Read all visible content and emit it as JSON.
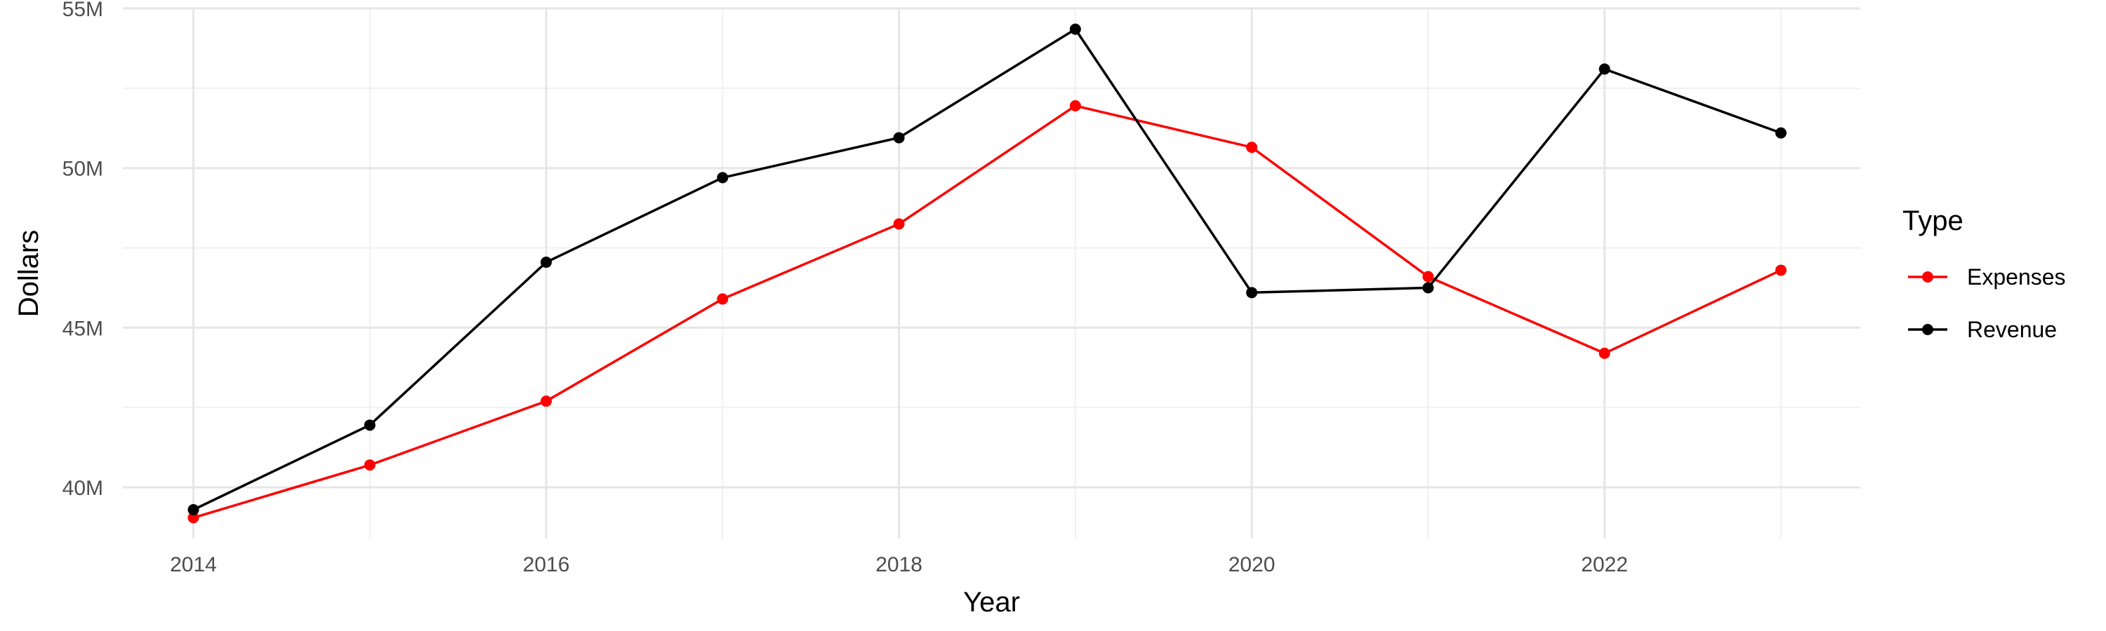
{
  "chart_data": {
    "type": "line",
    "title": "",
    "xlabel": "Year",
    "ylabel": "Dollars",
    "x": [
      2014,
      2015,
      2016,
      2017,
      2018,
      2019,
      2020,
      2021,
      2022,
      2023
    ],
    "xlim": [
      2013.6,
      2023.45
    ],
    "ylim": [
      38.4,
      55
    ],
    "x_ticks": [
      2014,
      2016,
      2018,
      2020,
      2022
    ],
    "y_ticks": [
      40,
      45,
      50,
      55
    ],
    "y_tick_labels": [
      "40M",
      "45M",
      "50M",
      "55M"
    ],
    "y_unit": "M",
    "grid": true,
    "legend": {
      "title": "Type",
      "position": "right"
    },
    "series": [
      {
        "name": "Expenses",
        "color": "#ff0000",
        "values": [
          39.05,
          40.7,
          42.7,
          45.9,
          48.25,
          51.95,
          50.65,
          46.6,
          44.2,
          46.8
        ]
      },
      {
        "name": "Revenue",
        "color": "#000000",
        "values": [
          39.3,
          41.95,
          47.05,
          49.7,
          50.95,
          54.35,
          46.1,
          46.25,
          53.1,
          51.1
        ]
      }
    ]
  }
}
